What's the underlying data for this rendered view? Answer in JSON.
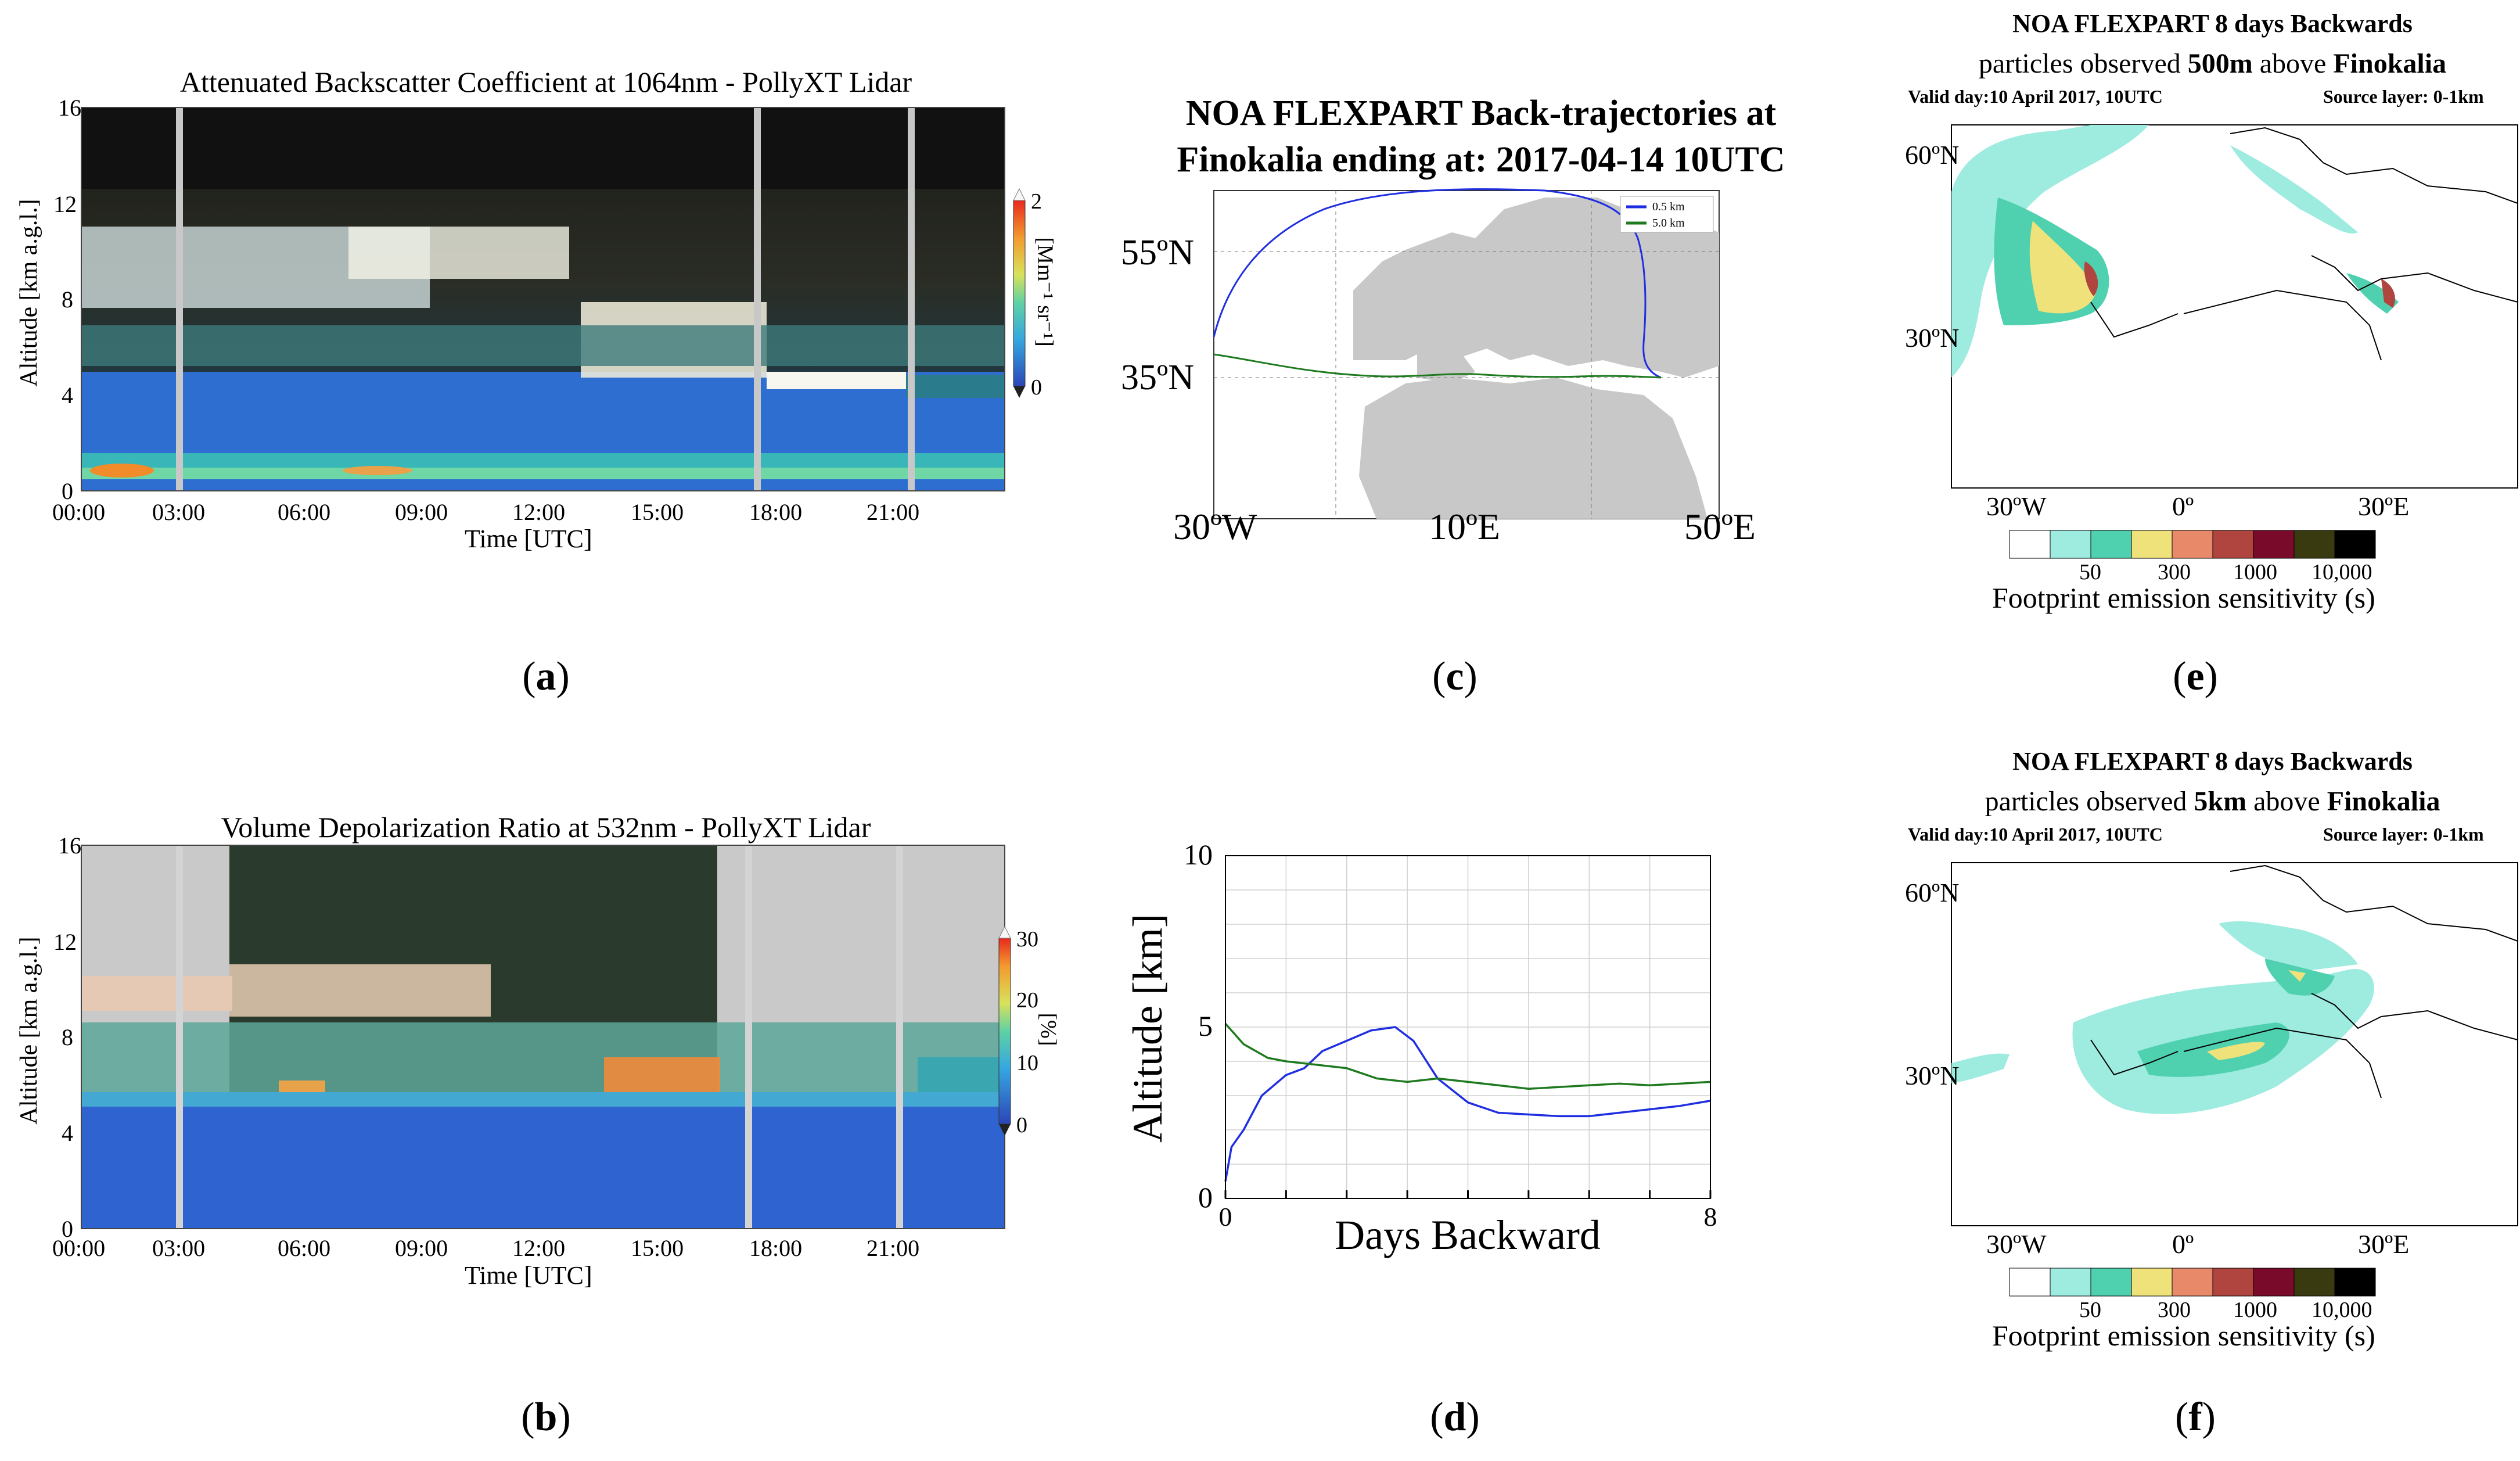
{
  "panels": {
    "a": {
      "label": "a",
      "title": "Attenuated Backscatter Coefficient at 1064nm - PollyXT Lidar",
      "ylabel": "Altitude [km a.g.l.]",
      "xlabel": "Time [UTC]",
      "yticks": [
        "0",
        "4",
        "8",
        "12",
        "16"
      ],
      "xticks": [
        "00:00",
        "03:00",
        "06:00",
        "09:00",
        "12:00",
        "15:00",
        "18:00",
        "21:00"
      ],
      "cbar_ticks": [
        "0",
        "2"
      ],
      "cbar_label": "[Mm⁻¹ sr⁻¹]"
    },
    "b": {
      "label": "b",
      "title": "Volume Depolarization Ratio at 532nm - PollyXT Lidar",
      "ylabel": "Altitude [km a.g.l.]",
      "xlabel": "Time [UTC]",
      "yticks": [
        "0",
        "4",
        "8",
        "12",
        "16"
      ],
      "xticks": [
        "00:00",
        "03:00",
        "06:00",
        "09:00",
        "12:00",
        "15:00",
        "18:00",
        "21:00"
      ],
      "cbar_ticks": [
        "0",
        "10",
        "20",
        "30"
      ],
      "cbar_label": "[%]"
    },
    "c": {
      "label": "c",
      "title_line1": "NOA FLEXPART Back-trajectories at",
      "title_line2": "Finokalia ending at: 2017-04-14 10UTC",
      "lat_labels": [
        "55ºN",
        "35ºN"
      ],
      "lon_labels": [
        "30ºW",
        "10ºE",
        "50ºE"
      ],
      "legend": [
        {
          "name": "0.5 km",
          "color": "#1f2ee0"
        },
        {
          "name": "5.0 km",
          "color": "#1e7a1e"
        }
      ]
    },
    "e": {
      "label": "e",
      "title_line1": "NOA FLEXPART 8 days Backwards",
      "title_line2_pre": "particles observed ",
      "title_line2_bold1": "500m",
      "title_line2_mid": " above ",
      "title_line2_bold2": "Finokalia",
      "subtitle_left": "Valid day:10 April 2017, 10UTC",
      "subtitle_right": "Source layer: 0-1km",
      "lat_labels": [
        "60ºN",
        "30ºN"
      ],
      "lon_labels": [
        "30ºW",
        "0º",
        "30ºE"
      ],
      "scale_ticks": [
        "50",
        "300",
        "1000",
        "10,000"
      ],
      "scale_title": "Footprint emission sensitivity (s)"
    },
    "f": {
      "label": "f",
      "title_line1": "NOA FLEXPART 8 days Backwards",
      "title_line2_pre": "particles observed ",
      "title_line2_bold1": "5km",
      "title_line2_mid": " above ",
      "title_line2_bold2": "Finokalia",
      "subtitle_left": "Valid day:10 April 2017, 10UTC",
      "subtitle_right": "Source layer: 0-1km",
      "lat_labels": [
        "60ºN",
        "30ºN"
      ],
      "lon_labels": [
        "30ºW",
        "0º",
        "30ºE"
      ],
      "scale_ticks": [
        "50",
        "300",
        "1000",
        "10,000"
      ],
      "scale_title": "Footprint emission sensitivity (s)"
    }
  },
  "footprint_colors": [
    "#ffffff",
    "#9eebe0",
    "#4fd1b0",
    "#f0e27a",
    "#e88a6a",
    "#b0443e",
    "#7a0a2a",
    "#3a3a10",
    "#000000"
  ],
  "chart_data": [
    {
      "type": "line",
      "panel": "d",
      "label": "d",
      "title": "",
      "xlabel": "Days Backward",
      "ylabel": "Altitude [km]",
      "xlim": [
        0,
        8
      ],
      "ylim": [
        0,
        10
      ],
      "xtick_labels": [
        "0",
        "8"
      ],
      "ytick_labels": [
        "0",
        "5",
        "10"
      ],
      "series": [
        {
          "name": "0.5 km",
          "color": "#1f2ee0",
          "x": [
            0,
            0.1,
            0.3,
            0.6,
            1.0,
            1.3,
            1.6,
            2.0,
            2.4,
            2.8,
            3.1,
            3.5,
            4.0,
            4.5,
            5.0,
            5.5,
            6.0,
            6.5,
            7.0,
            7.5,
            8.0
          ],
          "y": [
            0.5,
            1.5,
            2.0,
            3.0,
            3.6,
            3.8,
            4.3,
            4.6,
            4.9,
            5.0,
            4.6,
            3.5,
            2.8,
            2.5,
            2.45,
            2.4,
            2.4,
            2.5,
            2.6,
            2.7,
            2.85
          ]
        },
        {
          "name": "5.0 km",
          "color": "#1e7a1e",
          "x": [
            0,
            0.3,
            0.7,
            1.0,
            1.5,
            2.0,
            2.5,
            3.0,
            3.5,
            4.0,
            4.5,
            5.0,
            5.5,
            6.0,
            6.5,
            7.0,
            7.5,
            8.0
          ],
          "y": [
            5.1,
            4.5,
            4.1,
            4.0,
            3.9,
            3.8,
            3.5,
            3.4,
            3.5,
            3.4,
            3.3,
            3.2,
            3.25,
            3.3,
            3.35,
            3.3,
            3.35,
            3.4
          ]
        }
      ]
    }
  ]
}
